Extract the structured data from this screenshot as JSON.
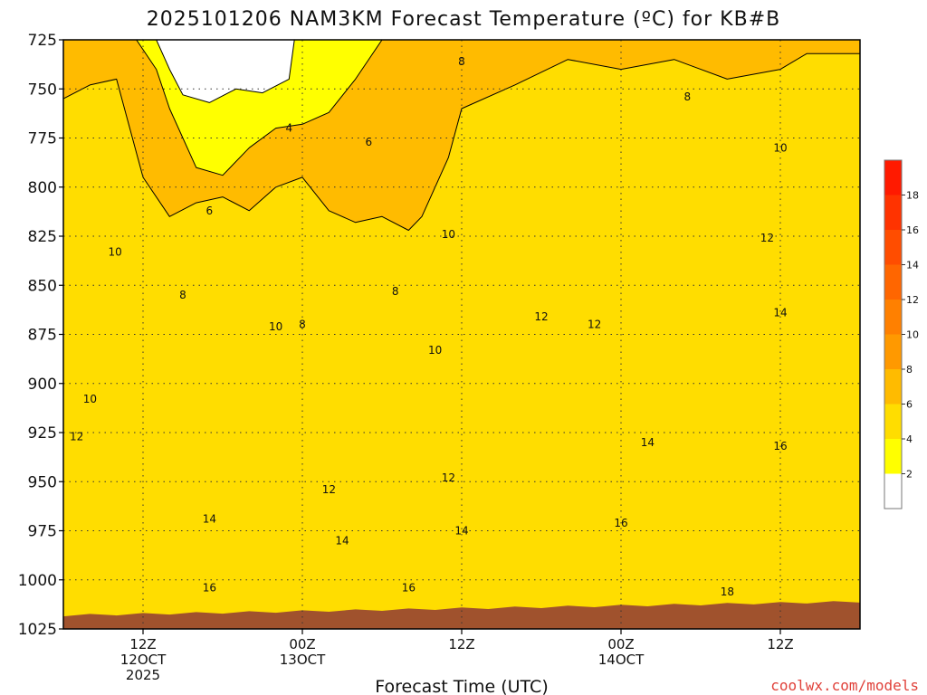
{
  "chart_data": {
    "type": "heatmap",
    "title": "2025101206 NAM3KM Forecast Temperature (ºC) for KB#B",
    "xlabel": "Forecast Time (UTC)",
    "ylabel": "",
    "credit": "coolwx.com/models",
    "y_ticks": [
      "725",
      "750",
      "775",
      "800",
      "825",
      "850",
      "875",
      "900",
      "925",
      "950",
      "975",
      "1000",
      "1025"
    ],
    "y_values": [
      725,
      750,
      775,
      800,
      825,
      850,
      875,
      900,
      925,
      950,
      975,
      1000,
      1025
    ],
    "ylim": [
      725,
      1025
    ],
    "y_inverted": true,
    "x_ticks": [
      {
        "hour": 6,
        "lines": [
          "12Z",
          "12OCT",
          "2025"
        ]
      },
      {
        "hour": 18,
        "lines": [
          "00Z",
          "13OCT"
        ]
      },
      {
        "hour": 30,
        "lines": [
          "12Z"
        ]
      },
      {
        "hour": 42,
        "lines": [
          "00Z",
          "14OCT"
        ]
      },
      {
        "hour": 54,
        "lines": [
          "12Z"
        ]
      }
    ],
    "xlim": [
      0,
      60
    ],
    "grid": true,
    "colorbar": {
      "labels": [
        "2",
        "4",
        "6",
        "8",
        "10",
        "12",
        "14",
        "16",
        "18"
      ],
      "levels": [
        2,
        4,
        6,
        8,
        10,
        12,
        14,
        16,
        18,
        20
      ],
      "colors": [
        "#ffffff",
        "#ffff00",
        "#ffdd00",
        "#ffbb00",
        "#ff9900",
        "#ff8000",
        "#ff6600",
        "#ff4d00",
        "#ff3300",
        "#ff1a00"
      ]
    },
    "ground_color": "#a0522d",
    "contour_labels": [
      {
        "text": "8",
        "hour": 30.0,
        "p": 736
      },
      {
        "text": "8",
        "hour": 47.0,
        "p": 754
      },
      {
        "text": "10",
        "hour": 54.0,
        "p": 780
      },
      {
        "text": "4",
        "hour": 17.0,
        "p": 770
      },
      {
        "text": "6",
        "hour": 23.0,
        "p": 777
      },
      {
        "text": "6",
        "hour": 11.0,
        "p": 812
      },
      {
        "text": "10",
        "hour": 3.9,
        "p": 833
      },
      {
        "text": "10",
        "hour": 29.0,
        "p": 824
      },
      {
        "text": "12",
        "hour": 53.0,
        "p": 826
      },
      {
        "text": "8",
        "hour": 9.0,
        "p": 855
      },
      {
        "text": "8",
        "hour": 25.0,
        "p": 853
      },
      {
        "text": "8",
        "hour": 18.0,
        "p": 870
      },
      {
        "text": "10",
        "hour": 16.0,
        "p": 871
      },
      {
        "text": "12",
        "hour": 36.0,
        "p": 866
      },
      {
        "text": "12",
        "hour": 40.0,
        "p": 870
      },
      {
        "text": "14",
        "hour": 54.0,
        "p": 864
      },
      {
        "text": "10",
        "hour": 28.0,
        "p": 883
      },
      {
        "text": "10",
        "hour": 2.0,
        "p": 908
      },
      {
        "text": "12",
        "hour": 1.0,
        "p": 927
      },
      {
        "text": "12",
        "hour": 29.0,
        "p": 948
      },
      {
        "text": "12",
        "hour": 20.0,
        "p": 954
      },
      {
        "text": "14",
        "hour": 44.0,
        "p": 930
      },
      {
        "text": "16",
        "hour": 54.0,
        "p": 932
      },
      {
        "text": "14",
        "hour": 11.0,
        "p": 969
      },
      {
        "text": "14",
        "hour": 21.0,
        "p": 980
      },
      {
        "text": "14",
        "hour": 30.0,
        "p": 975
      },
      {
        "text": "16",
        "hour": 42.0,
        "p": 971
      },
      {
        "text": "16",
        "hour": 11.0,
        "p": 1004
      },
      {
        "text": "16",
        "hour": 26.0,
        "p": 1004
      },
      {
        "text": "18",
        "hour": 50.0,
        "p": 1006
      }
    ],
    "regions": [
      {
        "level": 12,
        "poly": [
          [
            0,
            936
          ],
          [
            4,
            938
          ],
          [
            8,
            930
          ],
          [
            14,
            932
          ],
          [
            18,
            938
          ],
          [
            22,
            958
          ],
          [
            26,
            948
          ],
          [
            30,
            935
          ],
          [
            33,
            940
          ],
          [
            36,
            925
          ],
          [
            40,
            918
          ],
          [
            44,
            912
          ],
          [
            47,
            905
          ],
          [
            50,
            880
          ],
          [
            53,
            868
          ],
          [
            55,
            862
          ],
          [
            60,
            867
          ],
          [
            60,
            1025
          ],
          [
            0,
            1025
          ]
        ]
      },
      {
        "level": 14,
        "poly": [
          [
            0,
            972
          ],
          [
            3,
            968
          ],
          [
            6,
            960
          ],
          [
            11,
            970
          ],
          [
            14,
            965
          ],
          [
            17,
            973
          ],
          [
            20,
            983
          ],
          [
            24,
            968
          ],
          [
            28,
            978
          ],
          [
            32,
            970
          ],
          [
            35,
            965
          ],
          [
            38,
            952
          ],
          [
            42,
            938
          ],
          [
            46,
            930
          ],
          [
            50,
            918
          ],
          [
            53,
            904
          ],
          [
            56,
            875
          ],
          [
            58,
            860
          ],
          [
            60,
            858
          ],
          [
            60,
            1025
          ],
          [
            0,
            1025
          ]
        ]
      },
      {
        "level": 16,
        "poly": [
          [
            0,
            995
          ],
          [
            4,
            1000
          ],
          [
            8,
            998
          ],
          [
            12,
            1005
          ],
          [
            16,
            996
          ],
          [
            20,
            1002
          ],
          [
            24,
            994
          ],
          [
            28,
            1000
          ],
          [
            32,
            994
          ],
          [
            36,
            990
          ],
          [
            40,
            978
          ],
          [
            44,
            970
          ],
          [
            48,
            962
          ],
          [
            51,
            955
          ],
          [
            54,
            940
          ],
          [
            56,
            922
          ],
          [
            58,
            924
          ],
          [
            60,
            915
          ],
          [
            60,
            1025
          ],
          [
            0,
            1025
          ]
        ]
      },
      {
        "level": 18,
        "poly": [
          [
            0,
            1000
          ],
          [
            1.5,
            1003
          ],
          [
            2.5,
            1025
          ],
          [
            0,
            1025
          ]
        ]
      },
      {
        "level": 18,
        "poly": [
          [
            52,
            1010
          ],
          [
            53.5,
            985
          ],
          [
            56,
            978
          ],
          [
            58,
            985
          ],
          [
            60,
            983
          ],
          [
            60,
            1025
          ],
          [
            50,
            1025
          ]
        ]
      },
      {
        "level": 10,
        "poly": [
          [
            0,
            870
          ],
          [
            2,
            876
          ],
          [
            3,
            900
          ],
          [
            6,
            892
          ],
          [
            10,
            892
          ],
          [
            14,
            870
          ],
          [
            18,
            875
          ],
          [
            22,
            883
          ],
          [
            26,
            862
          ],
          [
            30,
            870
          ],
          [
            33,
            860
          ],
          [
            36,
            835
          ],
          [
            40,
            818
          ],
          [
            44,
            812
          ],
          [
            48,
            808
          ],
          [
            52,
            800
          ],
          [
            56,
            795
          ],
          [
            60,
            805
          ],
          [
            60,
            1025
          ],
          [
            0,
            1025
          ]
        ]
      },
      {
        "level": 8,
        "poly": [
          [
            0,
            830
          ],
          [
            3,
            818
          ],
          [
            6,
            855
          ],
          [
            10,
            840
          ],
          [
            14,
            832
          ],
          [
            18,
            862
          ],
          [
            22,
            842
          ],
          [
            26,
            832
          ],
          [
            30,
            828
          ],
          [
            33,
            790
          ],
          [
            36,
            785
          ],
          [
            40,
            782
          ],
          [
            44,
            778
          ],
          [
            48,
            770
          ],
          [
            52,
            776
          ],
          [
            56,
            762
          ],
          [
            60,
            765
          ],
          [
            60,
            1025
          ],
          [
            0,
            1025
          ]
        ]
      },
      {
        "level": 6,
        "poly": [
          [
            0,
            755
          ],
          [
            2,
            748
          ],
          [
            4,
            745
          ],
          [
            6,
            795
          ],
          [
            8,
            815
          ],
          [
            10,
            808
          ],
          [
            12,
            805
          ],
          [
            14,
            812
          ],
          [
            16,
            800
          ],
          [
            18,
            795
          ],
          [
            20,
            812
          ],
          [
            22,
            818
          ],
          [
            24,
            815
          ],
          [
            26,
            822
          ],
          [
            27,
            815
          ],
          [
            29,
            785
          ],
          [
            30,
            760
          ],
          [
            34,
            748
          ],
          [
            38,
            735
          ],
          [
            42,
            740
          ],
          [
            46,
            735
          ],
          [
            50,
            745
          ],
          [
            54,
            740
          ],
          [
            56,
            732
          ],
          [
            60,
            732
          ],
          [
            60,
            1025
          ],
          [
            0,
            1025
          ]
        ]
      },
      {
        "level": 4,
        "poly": [
          [
            5.5,
            725
          ],
          [
            7,
            740
          ],
          [
            8,
            760
          ],
          [
            10,
            790
          ],
          [
            12,
            794
          ],
          [
            14,
            780
          ],
          [
            16,
            770
          ],
          [
            18,
            768
          ],
          [
            20,
            762
          ],
          [
            22,
            745
          ],
          [
            24,
            725
          ]
        ]
      },
      {
        "level": 2,
        "poly": [
          [
            7,
            725
          ],
          [
            8,
            740
          ],
          [
            9,
            753
          ],
          [
            11,
            757
          ],
          [
            13,
            750
          ],
          [
            15,
            752
          ],
          [
            17,
            745
          ],
          [
            17.4,
            725
          ]
        ]
      }
    ]
  }
}
